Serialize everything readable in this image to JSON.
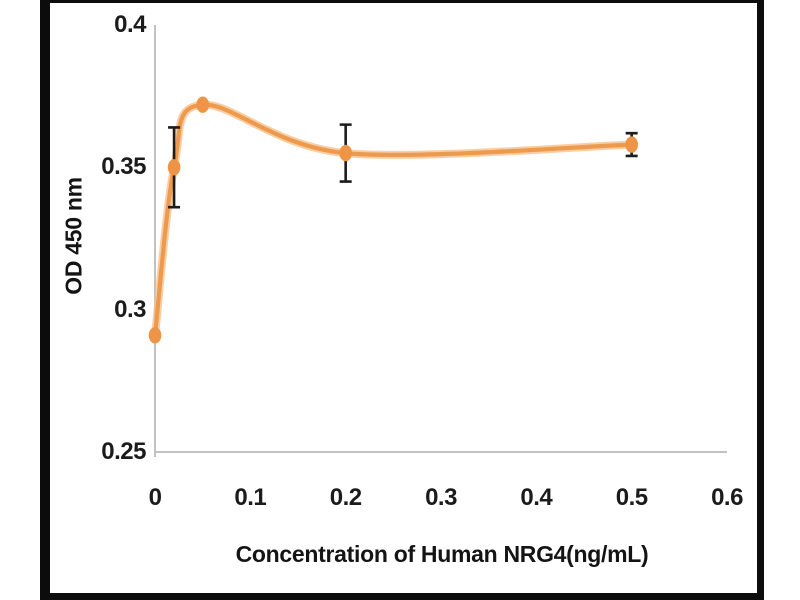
{
  "chart_data": {
    "type": "line",
    "title": "",
    "xlabel": "Concentration of Human NRG4(ng/mL)",
    "ylabel": "OD 450 nm",
    "x": [
      0,
      0.02,
      0.05,
      0.2,
      0.5
    ],
    "y": [
      0.291,
      0.35,
      0.372,
      0.355,
      0.358
    ],
    "y_err": [
      0,
      0.014,
      0,
      0.01,
      0.004
    ],
    "xtick_labels": [
      "0",
      "0.1",
      "0.2",
      "0.3",
      "0.4",
      "0.5",
      "0.6"
    ],
    "ytick_labels": [
      "0.25",
      "0.3",
      "0.35",
      "0.4"
    ],
    "xlim": [
      0,
      0.6
    ],
    "ylim": [
      0.25,
      0.4
    ],
    "grid": false,
    "legend": "none",
    "marker": "circle",
    "line_color": "#ED9A4F",
    "line_halo_color": "#F7C28C",
    "marker_color": "#EE9447",
    "error_bar_color": "#1c1c1c",
    "axis_line_color": "#C2C2C2",
    "frame_color": "#0c0c0c",
    "background_color": "#FFFFFF"
  }
}
